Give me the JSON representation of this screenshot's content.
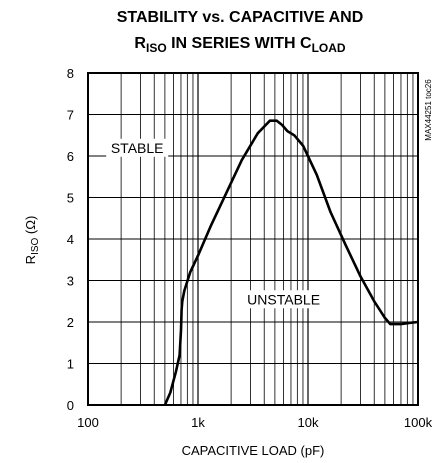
{
  "chart_data": {
    "type": "line",
    "title_line1": "STABILITY vs. CAPACITIVE AND",
    "title_line2": {
      "p1": "R",
      "p1_sub": "ISO",
      "p2": " IN SERIES WITH C",
      "p2_sub": "LOAD"
    },
    "xlabel": "CAPACITIVE LOAD (pF)",
    "ylabel": {
      "main": "R",
      "sub": "ISO",
      "unit": " (Ω)"
    },
    "x_scale": "log",
    "xlim": [
      100,
      100000
    ],
    "ylim": [
      0,
      8
    ],
    "x_ticks": [
      {
        "value": 100,
        "label": "100"
      },
      {
        "value": 1000,
        "label": "1k"
      },
      {
        "value": 10000,
        "label": "10k"
      },
      {
        "value": 100000,
        "label": "100k"
      }
    ],
    "y_ticks": [
      0,
      1,
      2,
      3,
      4,
      5,
      6,
      7,
      8
    ],
    "grid": true,
    "regions": [
      {
        "label": "STABLE",
        "x": 280,
        "y": 6.15
      },
      {
        "label": "UNSTABLE",
        "x": 6000,
        "y": 2.5
      }
    ],
    "part_code": "MAX44251 toc26",
    "series": [
      {
        "x": [
          500,
          560,
          630,
          680,
          700,
          710,
          720,
          750,
          850,
          1000,
          1300,
          1800,
          2500,
          3500,
          4500,
          5200,
          5800,
          6500,
          7500,
          9000,
          12000,
          16000,
          22000,
          30000,
          40000,
          50000,
          56000,
          60000,
          70000,
          85000,
          100000
        ],
        "y": [
          0,
          0.3,
          0.8,
          1.2,
          1.8,
          2.3,
          2.5,
          2.75,
          3.2,
          3.6,
          4.3,
          5.1,
          5.9,
          6.55,
          6.85,
          6.85,
          6.75,
          6.6,
          6.5,
          6.25,
          5.55,
          4.65,
          3.85,
          3.1,
          2.5,
          2.1,
          1.95,
          1.95,
          1.95,
          1.98,
          2.0
        ]
      }
    ]
  }
}
